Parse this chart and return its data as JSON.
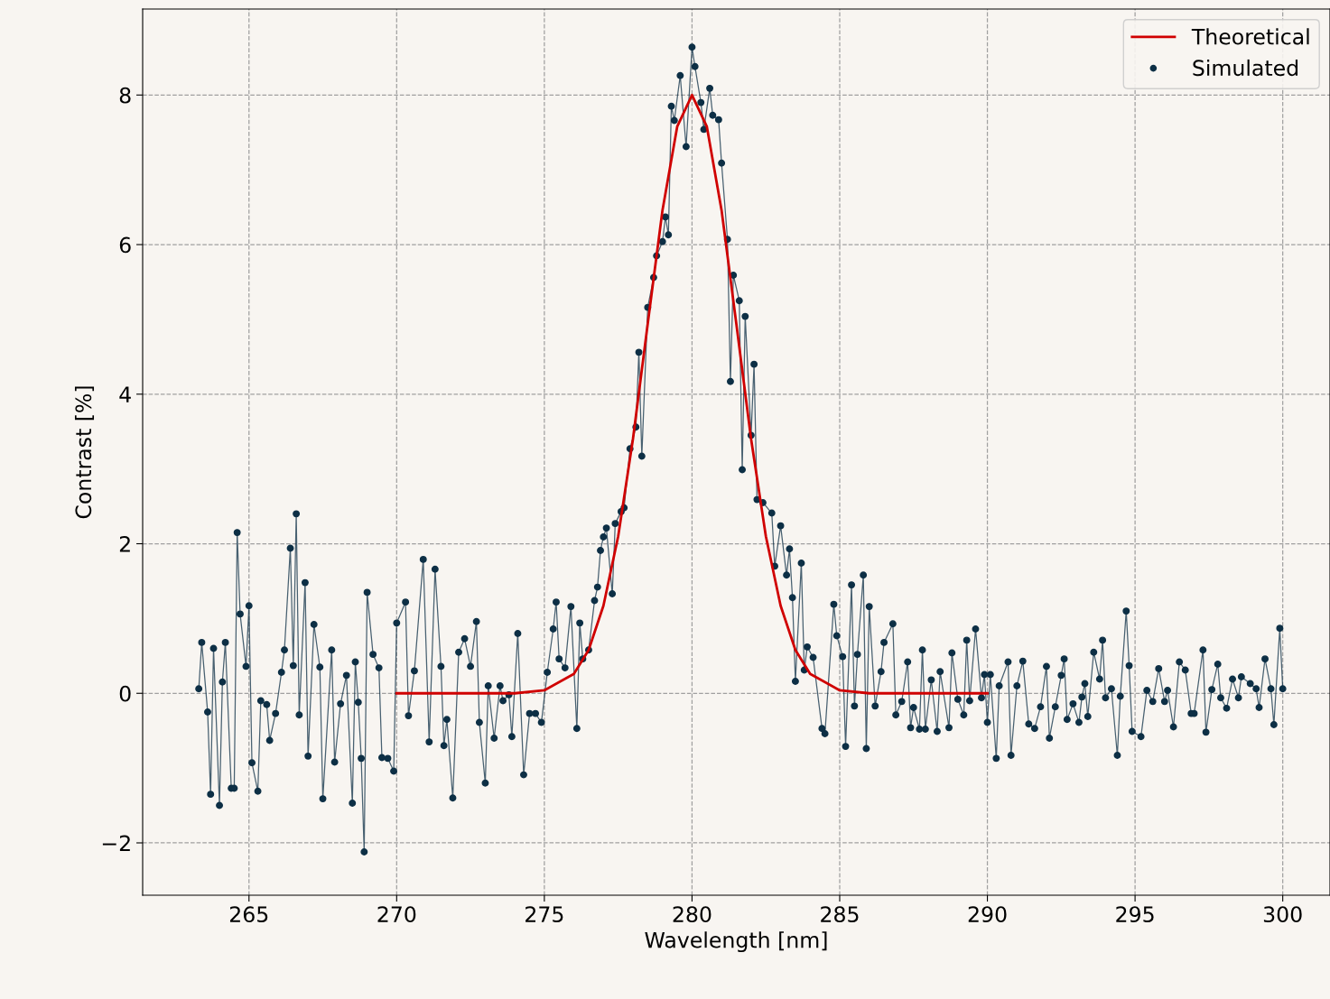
{
  "chart_data": {
    "type": "line",
    "xlabel": "Wavelength [nm]",
    "ylabel": "Contrast [%]",
    "xlim": [
      261.4,
      301.6
    ],
    "ylim": [
      -2.7,
      9.15
    ],
    "xticks": [
      265,
      270,
      275,
      280,
      285,
      290,
      295,
      300
    ],
    "yticks": [
      {
        "value": -2,
        "label": "−2"
      },
      0,
      2,
      4,
      6,
      8
    ],
    "grid": true,
    "legend": "top right",
    "series": [
      {
        "name": "Theoretical",
        "color": "#d00000",
        "marker": "none",
        "line_style": "solid",
        "x": [
          270,
          274,
          275,
          276,
          276.5,
          277,
          277.5,
          278,
          278.5,
          279,
          279.5,
          280,
          280.5,
          281,
          281.5,
          282,
          282.5,
          283,
          283.5,
          284,
          285,
          286,
          290
        ],
        "values": [
          0,
          0,
          0.04,
          0.26,
          0.58,
          1.17,
          2.1,
          3.4,
          4.94,
          6.46,
          7.58,
          8,
          7.58,
          6.46,
          4.94,
          3.4,
          2.1,
          1.17,
          0.58,
          0.26,
          0.04,
          0,
          0
        ]
      },
      {
        "name": "Simulated",
        "type": "line",
        "color": "#0d2f45",
        "marker": "circle",
        "line_style": "solid",
        "x": [
          263.3,
          263.4,
          263.6,
          263.7,
          263.8,
          264.0,
          264.1,
          264.2,
          264.4,
          264.5,
          264.6,
          264.7,
          264.9,
          265.0,
          265.1,
          265.3,
          265.4,
          265.6,
          265.7,
          265.9,
          266.1,
          266.2,
          266.4,
          266.5,
          266.6,
          266.7,
          266.9,
          267.0,
          267.2,
          267.4,
          267.5,
          267.8,
          267.9,
          268.1,
          268.3,
          268.5,
          268.6,
          268.7,
          268.8,
          268.9,
          269.0,
          269.2,
          269.4,
          269.5,
          269.7,
          269.9,
          270.0,
          270.3,
          270.4,
          270.6,
          270.9,
          271.1,
          271.3,
          271.5,
          271.6,
          271.7,
          271.9,
          272.1,
          272.3,
          272.5,
          272.7,
          272.8,
          273.0,
          273.1,
          273.3,
          273.5,
          273.6,
          273.8,
          273.9,
          274.1,
          274.3,
          274.5,
          274.7,
          274.9,
          275.1,
          275.3,
          275.4,
          275.5,
          275.7,
          275.9,
          276.1,
          276.2,
          276.3,
          276.5,
          276.7,
          276.8,
          276.9,
          277.0,
          277.1,
          277.3,
          277.4,
          277.6,
          277.7,
          277.9,
          278.1,
          278.2,
          278.3,
          278.5,
          278.7,
          278.8,
          279.0,
          279.1,
          279.2,
          279.3,
          279.4,
          279.6,
          279.8,
          280.0,
          280.1,
          280.3,
          280.4,
          280.6,
          280.7,
          280.9,
          281.0,
          281.2,
          281.3,
          281.4,
          281.6,
          281.7,
          281.8,
          282.0,
          282.1,
          282.2,
          282.4,
          282.7,
          282.8,
          283.0,
          283.2,
          283.3,
          283.4,
          283.5,
          283.7,
          283.8,
          283.9,
          284.1,
          284.4,
          284.5,
          284.8,
          284.9,
          285.1,
          285.2,
          285.4,
          285.5,
          285.6,
          285.8,
          285.9,
          286.0,
          286.2,
          286.4,
          286.5,
          286.8,
          286.9,
          287.1,
          287.3,
          287.4,
          287.5,
          287.7,
          287.8,
          287.9,
          288.1,
          288.3,
          288.4,
          288.7,
          288.8,
          289.0,
          289.2,
          289.3,
          289.4,
          289.6,
          289.8,
          289.9,
          290.0,
          290.1,
          290.3,
          290.4,
          290.7,
          290.8,
          291.0,
          291.2,
          291.4,
          291.6,
          291.8,
          292.0,
          292.1,
          292.3,
          292.5,
          292.6,
          292.7,
          292.9,
          293.1,
          293.2,
          293.3,
          293.4,
          293.6,
          293.8,
          293.9,
          294.0,
          294.2,
          294.4,
          294.5,
          294.7,
          294.8,
          294.9,
          295.2,
          295.4,
          295.6,
          295.8,
          296.0,
          296.1,
          296.3,
          296.5,
          296.7,
          296.9,
          297.0,
          297.3,
          297.4,
          297.6,
          297.8,
          297.9,
          298.1,
          298.3,
          298.5,
          298.6,
          298.9,
          299.1,
          299.2,
          299.4,
          299.6,
          299.7,
          299.9,
          300.0
        ],
        "values": [
          0.06,
          0.68,
          -0.25,
          -1.35,
          0.6,
          -1.5,
          0.15,
          0.68,
          -1.27,
          -1.27,
          2.15,
          1.06,
          0.36,
          1.17,
          -0.93,
          -1.31,
          -0.1,
          -0.15,
          -0.63,
          -0.27,
          0.28,
          0.58,
          1.94,
          0.37,
          2.4,
          -0.29,
          1.48,
          -0.84,
          0.92,
          0.35,
          -1.41,
          0.58,
          -0.92,
          -0.14,
          0.24,
          -1.47,
          0.42,
          -0.12,
          -0.87,
          -2.12,
          1.35,
          0.52,
          0.34,
          -0.86,
          -0.87,
          -1.04,
          0.94,
          1.22,
          -0.3,
          0.3,
          1.79,
          -0.65,
          1.66,
          0.36,
          -0.7,
          -0.35,
          -1.4,
          0.55,
          0.73,
          0.36,
          0.96,
          -0.39,
          -1.2,
          0.1,
          -0.6,
          0.1,
          -0.1,
          -0.02,
          -0.58,
          0.8,
          -1.09,
          -0.27,
          -0.27,
          -0.39,
          0.28,
          0.86,
          1.22,
          0.46,
          0.34,
          1.16,
          -0.47,
          0.94,
          0.46,
          0.58,
          1.24,
          1.42,
          1.91,
          2.09,
          2.21,
          1.33,
          2.27,
          2.43,
          2.48,
          3.27,
          3.56,
          4.56,
          3.17,
          5.16,
          5.56,
          5.85,
          6.04,
          6.37,
          6.13,
          7.85,
          7.66,
          8.26,
          7.31,
          8.64,
          8.38,
          7.9,
          7.54,
          8.09,
          7.73,
          7.67,
          7.09,
          6.07,
          4.17,
          5.59,
          5.25,
          2.99,
          5.04,
          3.45,
          4.4,
          2.59,
          2.55,
          2.41,
          1.7,
          2.24,
          1.58,
          1.93,
          1.28,
          0.16,
          1.74,
          0.31,
          0.62,
          0.48,
          -0.47,
          -0.54,
          1.19,
          0.77,
          0.49,
          -0.71,
          1.45,
          -0.17,
          0.52,
          1.58,
          -0.74,
          1.16,
          -0.17,
          0.29,
          0.68,
          0.93,
          -0.29,
          -0.11,
          0.42,
          -0.46,
          -0.19,
          -0.48,
          0.58,
          -0.48,
          0.18,
          -0.51,
          0.29,
          -0.46,
          0.54,
          -0.08,
          -0.29,
          0.71,
          -0.1,
          0.86,
          -0.06,
          0.25,
          -0.39,
          0.25,
          -0.87,
          0.1,
          0.42,
          -0.83,
          0.1,
          0.43,
          -0.41,
          -0.47,
          -0.18,
          0.36,
          -0.6,
          -0.18,
          0.24,
          0.46,
          -0.35,
          -0.14,
          -0.39,
          -0.05,
          0.13,
          -0.31,
          0.55,
          0.19,
          0.71,
          -0.06,
          0.06,
          -0.83,
          -0.04,
          1.1,
          0.37,
          -0.51,
          -0.58,
          0.04,
          -0.11,
          0.33,
          -0.11,
          0.04,
          -0.45,
          0.42,
          0.31,
          -0.27,
          -0.27,
          0.58,
          -0.52,
          0.05,
          0.39,
          -0.06,
          -0.2,
          0.19,
          -0.06,
          0.22,
          0.13,
          0.06,
          -0.19,
          0.46,
          0.06,
          -0.42,
          0.87,
          0.06
        ]
      }
    ]
  }
}
